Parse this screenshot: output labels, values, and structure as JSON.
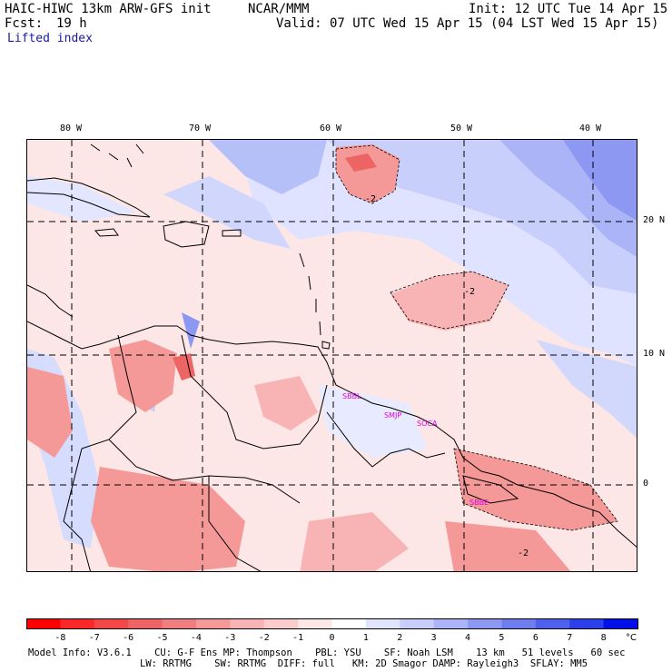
{
  "header": {
    "model_title": "HAIC-HIWC 13km ARW-GFS init",
    "org": "NCAR/MMM",
    "init": "Init: 12 UTC Tue 14 Apr 15",
    "fcst_label": "Fcst:",
    "fcst_value": "19 h",
    "valid": "Valid: 07 UTC Wed 15 Apr 15 (04 LST Wed 15 Apr 15)",
    "field": "Lifted index"
  },
  "map": {
    "lon_labels": [
      "80 W",
      "70 W",
      "60 W",
      "50 W",
      "40 W"
    ],
    "lat_labels": [
      "20 N",
      "10 N",
      "0"
    ],
    "contour_labels": [
      "-2",
      "-2",
      "-2"
    ],
    "stations": [
      "SBBL",
      "SMJP",
      "SOCA",
      "SBBE"
    ],
    "colors": {
      "neg_strong": "#f27878",
      "neg_mid": "#f7a8a8",
      "neg_light": "#fbd2d2",
      "neutral": "#fff0f0",
      "pos_light": "#cdd6ff",
      "pos_mid": "#9aaaf5",
      "pos_strong": "#5c6cf0"
    }
  },
  "colorbar": {
    "ticks": [
      "-8",
      "-7",
      "-6",
      "-5",
      "-4",
      "-3",
      "-2",
      "-1",
      "0",
      "1",
      "2",
      "3",
      "4",
      "5",
      "6",
      "7",
      "8"
    ],
    "unit": "°C",
    "colors": [
      "#ff0000",
      "#fa2828",
      "#f24848",
      "#ed6464",
      "#f07e7e",
      "#f49898",
      "#f8b4b4",
      "#fbcccc",
      "#fde6e6",
      "#ffffff",
      "#e0e4ff",
      "#c8cefa",
      "#aab4f6",
      "#8c98f2",
      "#6e7eef",
      "#4e60ec",
      "#2c40ea",
      "#0010e6"
    ]
  },
  "footer": {
    "line1": "Model Info: V3.6.1    CU: G-F Ens MP: Thompson    PBL: YSU    SF: Noah LSM    13 km   51 levels   60 sec",
    "line2": "LW: RRTMG    SW: RRTMG  DIFF: full   KM: 2D Smagor DAMP: Rayleigh3  SFLAY: MM5"
  }
}
